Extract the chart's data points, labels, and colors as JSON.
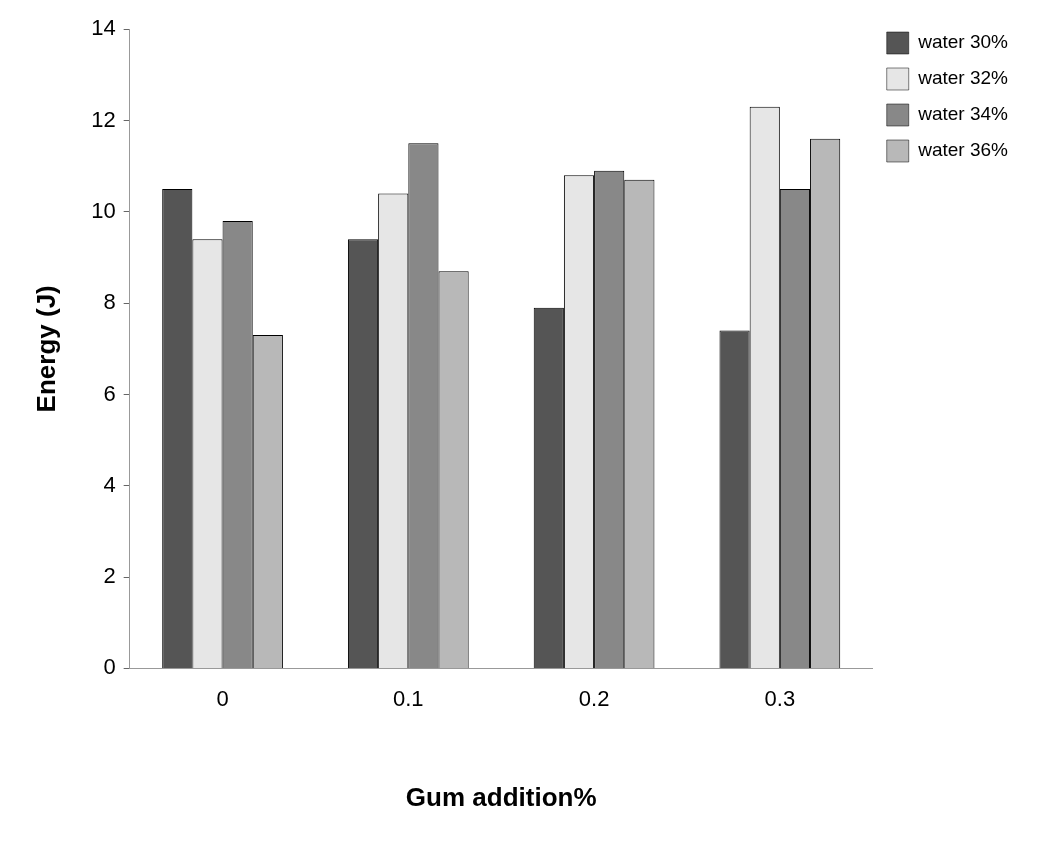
{
  "chart_data": {
    "type": "bar",
    "xlabel": "Gum addition%",
    "ylabel": "Energy (J)",
    "categories": [
      "0",
      "0.1",
      "0.2",
      "0.3"
    ],
    "series": [
      {
        "name": "water 30%",
        "color": "#555555",
        "values": [
          10.5,
          9.4,
          7.9,
          7.4
        ]
      },
      {
        "name": "water 32%",
        "color": "#e6e6e6",
        "values": [
          9.4,
          10.4,
          10.8,
          12.3
        ]
      },
      {
        "name": "water 34%",
        "color": "#888888",
        "values": [
          9.8,
          11.5,
          10.9,
          10.5
        ]
      },
      {
        "name": "water 36%",
        "color": "#b8b8b8",
        "values": [
          7.3,
          8.7,
          10.7,
          11.6
        ]
      }
    ],
    "ylim": [
      0,
      14
    ],
    "yticks": [
      0,
      2,
      4,
      6,
      8,
      10,
      12,
      14
    ],
    "grid": false,
    "legend": "top right"
  }
}
